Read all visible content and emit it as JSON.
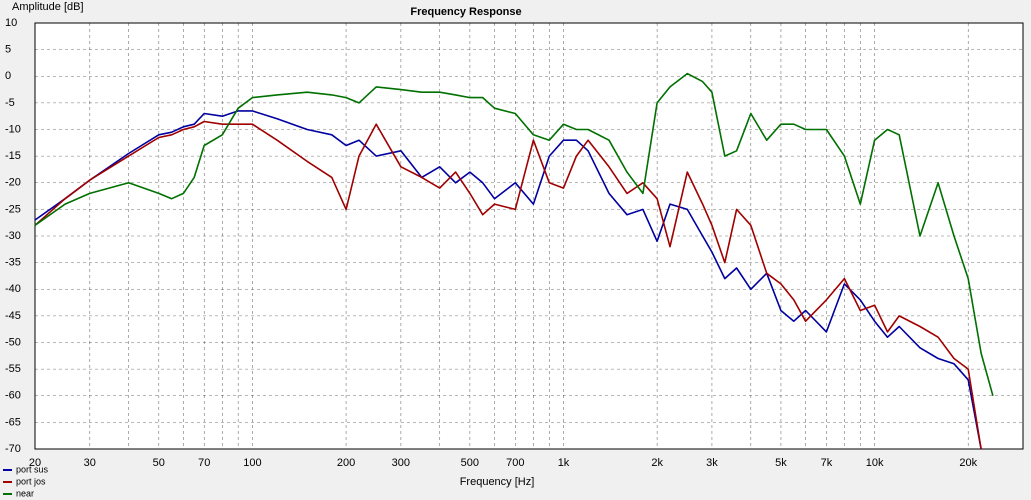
{
  "chart_data": {
    "type": "line",
    "title": "Frequency Response",
    "xlabel": "Frequency [Hz]",
    "ylabel": "Amplitude [dB]",
    "xscale": "log",
    "xlim": [
      20,
      30000
    ],
    "ylim": [
      -70,
      10
    ],
    "xticks": [
      20,
      30,
      50,
      70,
      100,
      200,
      300,
      500,
      700,
      {
        "value": 1000,
        "label": "1k"
      },
      {
        "value": 2000,
        "label": "2k"
      },
      {
        "value": 3000,
        "label": "3k"
      },
      {
        "value": 5000,
        "label": "5k"
      },
      {
        "value": 7000,
        "label": "7k"
      },
      {
        "value": 10000,
        "label": "10k"
      },
      {
        "value": 20000,
        "label": "20k"
      }
    ],
    "xminor_ticks": [
      40,
      60,
      80,
      90,
      400,
      600,
      800,
      900,
      4000,
      6000,
      8000,
      9000
    ],
    "yticks": [
      10,
      5,
      0,
      -5,
      -10,
      -15,
      -20,
      -25,
      -30,
      -35,
      -40,
      -45,
      -50,
      -55,
      -60,
      -65,
      -70
    ],
    "grid": true,
    "legend": "bottom-left",
    "x": [
      20,
      25,
      30,
      40,
      50,
      55,
      60,
      65,
      70,
      80,
      90,
      100,
      120,
      150,
      180,
      200,
      220,
      250,
      300,
      350,
      400,
      450,
      500,
      550,
      600,
      700,
      800,
      900,
      1000,
      1100,
      1200,
      1400,
      1600,
      1800,
      2000,
      2200,
      2500,
      2800,
      3000,
      3300,
      3600,
      4000,
      4500,
      5000,
      5500,
      6000,
      7000,
      8000,
      9000,
      10000,
      11000,
      12000,
      14000,
      16000,
      18000,
      20000,
      22000,
      24000
    ],
    "series": [
      {
        "name": "port sus",
        "color": "#0000a0",
        "values": [
          -27,
          -23,
          -19.5,
          -14.5,
          -11,
          -10.5,
          -9.5,
          -9,
          -7,
          -7.5,
          -6.5,
          -6.5,
          -8,
          -10,
          -11,
          -13,
          -12,
          -15,
          -14,
          -19,
          -17,
          -20,
          -18,
          -20,
          -23,
          -20,
          -24,
          -15,
          -12,
          -12,
          -14,
          -22,
          -26,
          -25,
          -31,
          -24,
          -25,
          -30,
          -33,
          -38,
          -36,
          -40,
          -37,
          -44,
          -46,
          -44,
          -48,
          -39,
          -42,
          -46,
          -49,
          -47,
          -51,
          -53,
          -54,
          -57,
          -70,
          null
        ]
      },
      {
        "name": "port jos",
        "color": "#a00000",
        "values": [
          -28,
          -23,
          -19.5,
          -15,
          -11.5,
          -11,
          -10,
          -9.5,
          -8.5,
          -9,
          -9,
          -9,
          -12,
          -16,
          -19,
          -25,
          -15,
          -9,
          -17,
          -19,
          -21,
          -18,
          -22,
          -26,
          -24,
          -25,
          -12,
          -20,
          -21,
          -15,
          -12,
          -17,
          -22,
          -20,
          -23,
          -32,
          -18,
          -24,
          -28,
          -35,
          -25,
          -28,
          -37,
          -39,
          -42,
          -46,
          -42,
          -38,
          -44,
          -43,
          -48,
          -45,
          -47,
          -49,
          -53,
          -55,
          -70,
          null
        ]
      },
      {
        "name": "near",
        "color": "#007000",
        "values": [
          -28,
          -24,
          -22,
          -20,
          -22,
          -23,
          -22,
          -19,
          -13,
          -11,
          -6,
          -4,
          -3.5,
          -3,
          -3.5,
          -4,
          -5,
          -2,
          -2.5,
          -3,
          -3,
          -3.5,
          -4,
          -4,
          -6,
          -7,
          -11,
          -12,
          -9,
          -10,
          -10,
          -12,
          -18,
          -22,
          -5,
          -2,
          0.5,
          -1,
          -3,
          -15,
          -14,
          -7,
          -12,
          -9,
          -9,
          -10,
          -10,
          -15,
          -24,
          -12,
          -10,
          -11,
          -30,
          -20,
          -30,
          -38,
          -52,
          -60
        ]
      }
    ]
  }
}
